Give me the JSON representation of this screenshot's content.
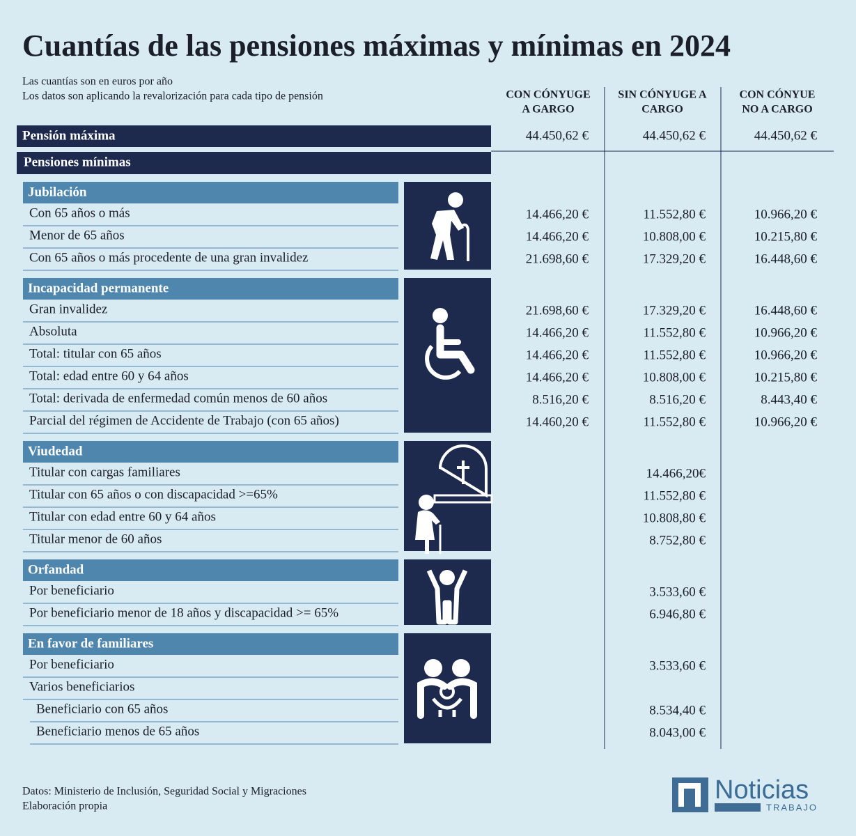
{
  "title": "Cuantías de las pensiones máximas y mínimas en 2024",
  "notes": [
    "Las cuantías son en euros por año",
    "Los datos son aplicando la revalorización para cada tipo de pensión"
  ],
  "columns": [
    [
      "CON CÓNYUGE",
      "A GARGO"
    ],
    [
      "SIN CÓNYUGE A",
      "CARGO"
    ],
    [
      "CON CÓNYUE",
      "NO A CARGO"
    ]
  ],
  "max_row": {
    "label": "Pensión máxima",
    "values": [
      "44.450,62 €",
      "44.450,62 €",
      "44.450,62 €"
    ]
  },
  "min_header": "Pensiones mínimas",
  "sections": [
    {
      "title": "Jubilación",
      "rows": [
        {
          "label": "Con 65 años o más",
          "values": [
            "14.466,20 €",
            "11.552,80 €",
            "10.966,20 €"
          ]
        },
        {
          "label": "Menor de 65 años",
          "values": [
            "14.466,20 €",
            "10.808,00 €",
            "10.215,80 €"
          ]
        },
        {
          "label": "Con 65 años o más procedente de una gran invalidez",
          "values": [
            "21.698,60 €",
            "17.329,20 €",
            "16.448,60 €"
          ]
        }
      ]
    },
    {
      "title": "Incapacidad permanente",
      "rows": [
        {
          "label": "Gran invalidez",
          "values": [
            "21.698,60 €",
            "17.329,20 €",
            "16.448,60 €"
          ]
        },
        {
          "label": "Absoluta",
          "values": [
            "14.466,20 €",
            "11.552,80 €",
            "10.966,20 €"
          ]
        },
        {
          "label": "Total: titular con 65 años",
          "values": [
            "14.466,20 €",
            "11.552,80 €",
            "10.966,20 €"
          ]
        },
        {
          "label": "Total: edad entre 60 y 64 años",
          "values": [
            "14.466,20 €",
            "10.808,00 €",
            "10.215,80 €"
          ]
        },
        {
          "label": "Total: derivada de enfermedad común menos de 60 años",
          "values": [
            "8.516,20 €",
            "8.516,20 €",
            "8.443,40 €"
          ]
        },
        {
          "label": "Parcial del régimen de Accidente de Trabajo (con 65 años)",
          "values": [
            "14.460,20 €",
            "11.552,80 €",
            "10.966,20 €"
          ]
        }
      ]
    },
    {
      "title": "Viudedad",
      "rows": [
        {
          "label": "Titular con cargas familiares",
          "value": "14.466,20€"
        },
        {
          "label": "Titular con 65 años o con discapacidad >=65%",
          "value": "11.552,80 €"
        },
        {
          "label": "Titular con edad entre 60 y 64 años",
          "value": "10.808,80 €"
        },
        {
          "label": "Titular menor de 60 años",
          "value": "8.752,80 €"
        }
      ]
    },
    {
      "title": "Orfandad",
      "rows": [
        {
          "label": "Por beneficiario",
          "value": "3.533,60 €"
        },
        {
          "label": "Por beneficiario menor de 18 años y discapacidad >= 65%",
          "value": "6.946,80 €"
        }
      ]
    },
    {
      "title": "En favor de familiares",
      "rows": [
        {
          "label": "Por beneficiario",
          "value": "3.533,60 €"
        },
        {
          "label": "Varios beneficiarios",
          "children": [
            {
              "label": "Beneficiario con 65 años",
              "value": "8.534,40 €"
            },
            {
              "label": "Beneficiario menos de 65 años",
              "value": "8.043,00 €"
            }
          ]
        }
      ]
    }
  ],
  "source": [
    "Datos: Ministerio de Inclusión, Seguridad Social y Migraciones",
    "Elaboración propia"
  ],
  "logo": {
    "name": "Noticias",
    "sub": "TRABAJO"
  }
}
